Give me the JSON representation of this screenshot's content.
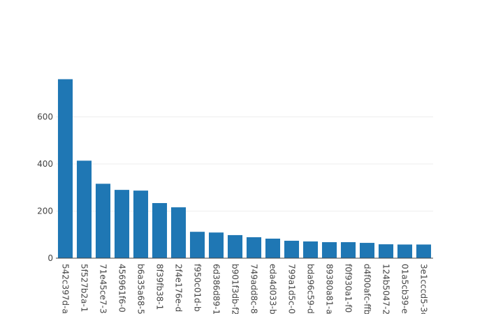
{
  "chart_data": {
    "type": "bar",
    "categories": [
      "542c397d-a",
      "5f527b2a-1",
      "71e45ce7-3",
      "456961f6-0",
      "b6a35a68-5",
      "8f39fb38-1",
      "2f4e176e-d",
      "f950c01d-b",
      "6d386d89-1",
      "b901f3db-f2",
      "749add8c-8",
      "eda4d033-b",
      "799a1d5c-0",
      "bda96c59-d",
      "89380a81-a",
      "f0f930a1-f0",
      "d4f00afc-ffb",
      "124b5047-2",
      "01a5cb39-e",
      "3e1cccd5-3c"
    ],
    "values": [
      760,
      414,
      316,
      290,
      287,
      234,
      216,
      112,
      109,
      98,
      89,
      83,
      74,
      71,
      68,
      68,
      65,
      59,
      58,
      58
    ],
    "color": "#1f77b4",
    "ylim": [
      0,
      800
    ],
    "yticks": [
      0,
      200,
      400,
      600
    ],
    "grid": true
  }
}
